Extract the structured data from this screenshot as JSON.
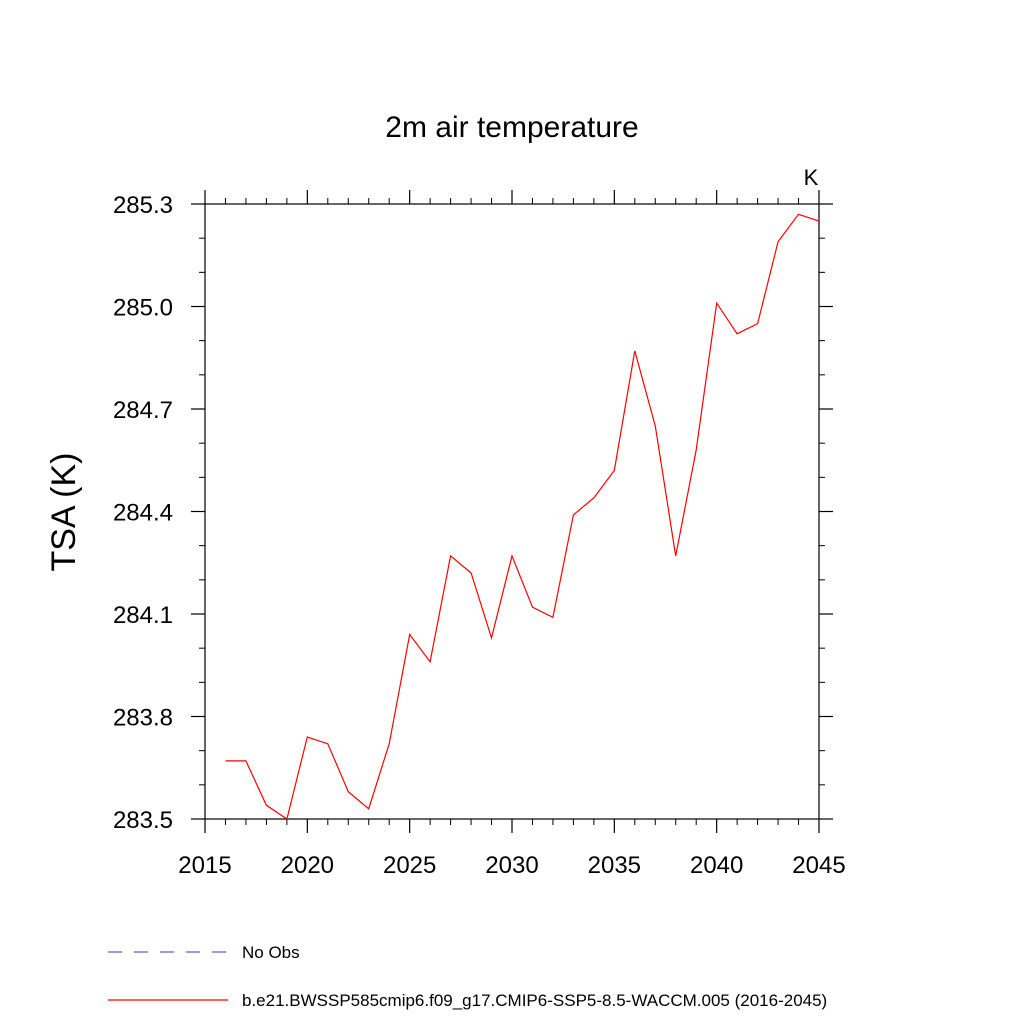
{
  "chart_data": {
    "type": "line",
    "title": "2m air temperature",
    "units_label": "K",
    "ylabel": "TSA  (K)",
    "xlabel": "",
    "xlim": [
      2015,
      2045
    ],
    "ylim": [
      283.5,
      285.3
    ],
    "x_ticks": [
      2015,
      2020,
      2025,
      2030,
      2035,
      2040,
      2045
    ],
    "y_ticks": [
      283.5,
      283.8,
      284.1,
      284.4,
      284.7,
      285.0,
      285.3
    ],
    "y_tick_labels": [
      "283.5",
      "283.8",
      "284.1",
      "284.4",
      "284.7",
      "285.0",
      "285.3"
    ],
    "series": [
      {
        "name": "b.e21.BWSSP585cmip6.f09_g17.CMIP6-SSP5-8.5-WACCM.005 (2016-2045)",
        "color": "#ff0000",
        "style": "solid",
        "x": [
          2016,
          2017,
          2018,
          2019,
          2020,
          2021,
          2022,
          2023,
          2024,
          2025,
          2026,
          2027,
          2028,
          2029,
          2030,
          2031,
          2032,
          2033,
          2034,
          2035,
          2036,
          2037,
          2038,
          2039,
          2040,
          2041,
          2042,
          2043,
          2044,
          2045
        ],
        "y": [
          283.67,
          283.67,
          283.54,
          283.5,
          283.74,
          283.72,
          283.58,
          283.53,
          283.72,
          284.04,
          283.96,
          284.27,
          284.22,
          284.03,
          284.27,
          284.12,
          284.09,
          284.39,
          284.44,
          284.52,
          284.87,
          284.65,
          284.27,
          284.58,
          285.01,
          284.92,
          284.95,
          285.19,
          285.27,
          285.25
        ]
      }
    ],
    "legend": {
      "placement": "bottom",
      "entries": [
        {
          "label": "No Obs",
          "color": "#6a5acd",
          "style": "dashed"
        },
        {
          "label": "b.e21.BWSSP585cmip6.f09_g17.CMIP6-SSP5-8.5-WACCM.005 (2016-2045)",
          "color": "#ff0000",
          "style": "solid"
        }
      ]
    },
    "grid": false
  }
}
